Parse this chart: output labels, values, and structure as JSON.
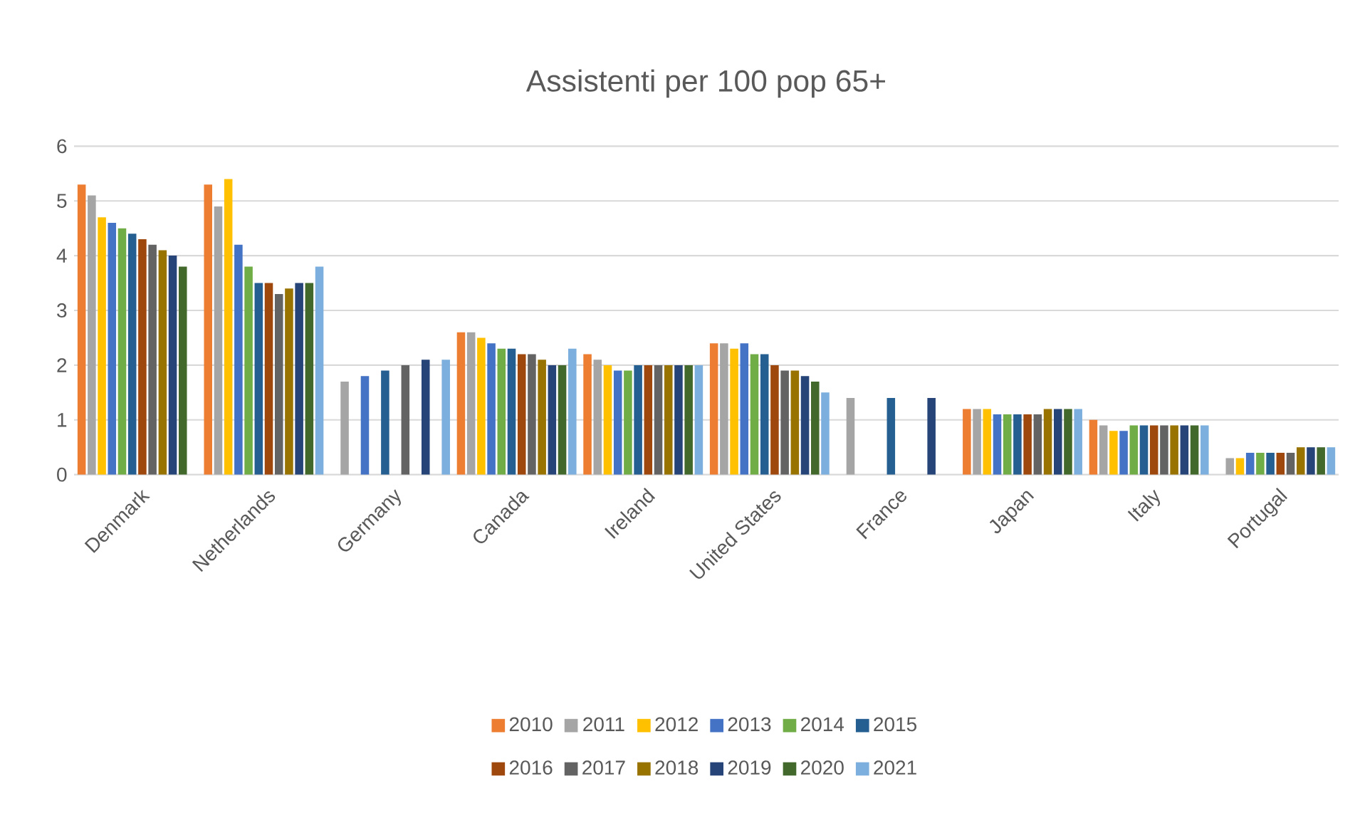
{
  "chart_data": {
    "type": "bar",
    "title": "Assistenti per 100 pop 65+",
    "categories": [
      "Denmark",
      "Netherlands",
      "Germany",
      "Canada",
      "Ireland",
      "United States",
      "France",
      "Japan",
      "Italy",
      "Portugal"
    ],
    "series": [
      {
        "name": "2010",
        "color": "#ed7d31",
        "values": [
          5.3,
          5.3,
          null,
          2.6,
          2.2,
          2.4,
          null,
          1.2,
          1.0,
          null
        ]
      },
      {
        "name": "2011",
        "color": "#a5a5a5",
        "values": [
          5.1,
          4.9,
          1.7,
          2.6,
          2.1,
          2.4,
          1.4,
          1.2,
          0.9,
          0.3
        ]
      },
      {
        "name": "2012",
        "color": "#ffc000",
        "values": [
          4.7,
          5.4,
          null,
          2.5,
          2.0,
          2.3,
          null,
          1.2,
          0.8,
          0.3
        ]
      },
      {
        "name": "2013",
        "color": "#4472c4",
        "values": [
          4.6,
          4.2,
          1.8,
          2.4,
          1.9,
          2.4,
          null,
          1.1,
          0.8,
          0.4
        ]
      },
      {
        "name": "2014",
        "color": "#70ad47",
        "values": [
          4.5,
          3.8,
          null,
          2.3,
          1.9,
          2.2,
          null,
          1.1,
          0.9,
          0.4
        ]
      },
      {
        "name": "2015",
        "color": "#255e91",
        "values": [
          4.4,
          3.5,
          1.9,
          2.3,
          2.0,
          2.2,
          1.4,
          1.1,
          0.9,
          0.4
        ]
      },
      {
        "name": "2016",
        "color": "#9e480e",
        "values": [
          4.3,
          3.5,
          null,
          2.2,
          2.0,
          2.0,
          null,
          1.1,
          0.9,
          0.4
        ]
      },
      {
        "name": "2017",
        "color": "#636363",
        "values": [
          4.2,
          3.3,
          2.0,
          2.2,
          2.0,
          1.9,
          null,
          1.1,
          0.9,
          0.4
        ]
      },
      {
        "name": "2018",
        "color": "#997300",
        "values": [
          4.1,
          3.4,
          null,
          2.1,
          2.0,
          1.9,
          null,
          1.2,
          0.9,
          0.5
        ]
      },
      {
        "name": "2019",
        "color": "#264478",
        "values": [
          4.0,
          3.5,
          2.1,
          2.0,
          2.0,
          1.8,
          1.4,
          1.2,
          0.9,
          0.5
        ]
      },
      {
        "name": "2020",
        "color": "#43682b",
        "values": [
          3.8,
          3.5,
          null,
          2.0,
          2.0,
          1.7,
          null,
          1.2,
          0.9,
          0.5
        ]
      },
      {
        "name": "2021",
        "color": "#7cafdd",
        "values": [
          null,
          3.8,
          2.1,
          2.3,
          2.0,
          1.5,
          null,
          1.2,
          0.9,
          0.5
        ]
      }
    ],
    "ylim": [
      0,
      6
    ],
    "yticks": [
      0,
      1,
      2,
      3,
      4,
      5,
      6
    ],
    "grid": "y",
    "legend": "bottom"
  }
}
